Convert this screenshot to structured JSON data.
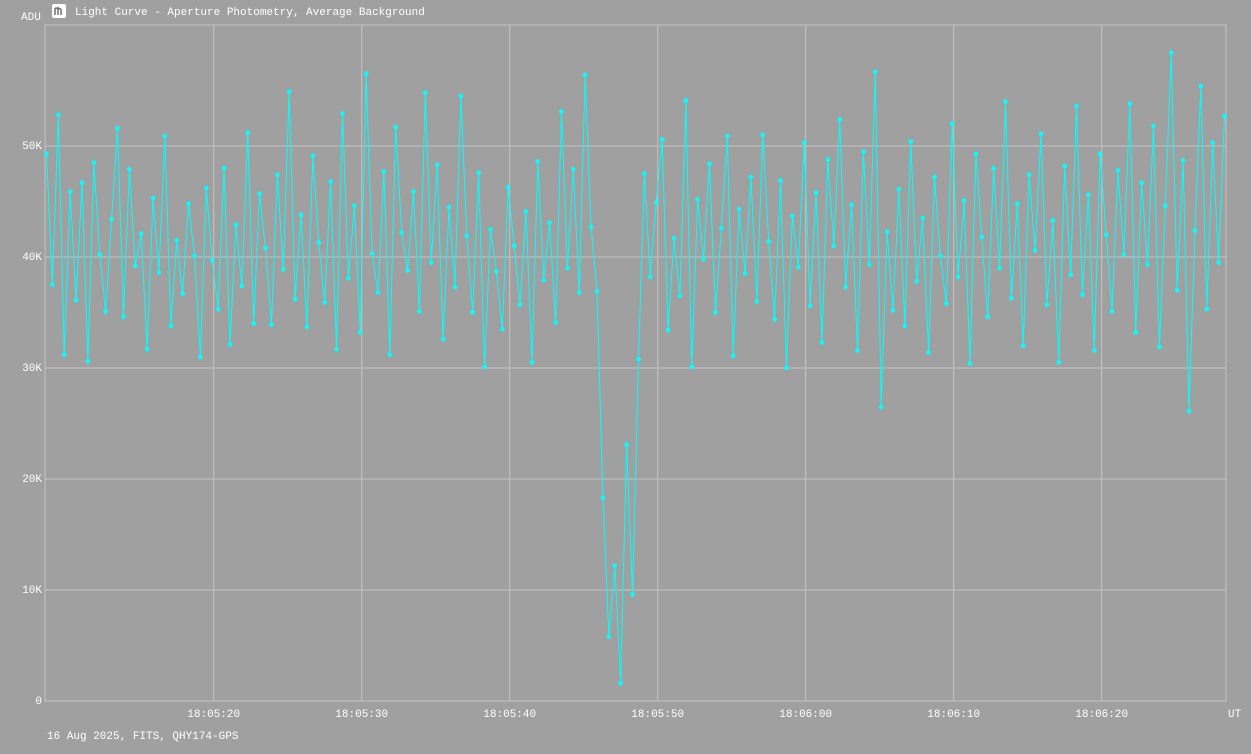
{
  "chart_data": {
    "type": "line",
    "title": "Light Curve - Aperture Photometry, Average Background",
    "footer": "16 Aug 2025, FITS, QHY174-GPS",
    "y_label": "ADU",
    "x_label": "UT",
    "color": "#00ffff",
    "grid": true,
    "xlim": [
      8.6,
      88.4
    ],
    "ylim": [
      0,
      60900
    ],
    "xticks": [
      {
        "value": 20,
        "label": "18:05:20"
      },
      {
        "value": 30,
        "label": "18:05:30"
      },
      {
        "value": 40,
        "label": "18:05:40"
      },
      {
        "value": 50,
        "label": "18:05:50"
      },
      {
        "value": 60,
        "label": "18:06:00"
      },
      {
        "value": 70,
        "label": "18:06:10"
      },
      {
        "value": 80,
        "label": "18:06:20"
      }
    ],
    "yticks": [
      0,
      {
        "value": 10000,
        "label": "10K"
      },
      {
        "value": 20000,
        "label": "20K"
      },
      {
        "value": 30000,
        "label": "30K"
      },
      {
        "value": 40000,
        "label": "40K"
      },
      {
        "value": 50000,
        "label": "50K"
      }
    ],
    "x": [
      8.7,
      9.1,
      9.5,
      9.9,
      10.3,
      10.7,
      11.1,
      11.5,
      11.9,
      12.3,
      12.7,
      13.1,
      13.5,
      13.9,
      14.3,
      14.7,
      15.1,
      15.5,
      15.9,
      16.3,
      16.7,
      17.1,
      17.5,
      17.9,
      18.3,
      18.7,
      19.1,
      19.5,
      19.9,
      20.3,
      20.7,
      21.1,
      21.5,
      21.9,
      22.3,
      22.7,
      23.1,
      23.5,
      23.9,
      24.3,
      24.7,
      25.1,
      25.5,
      25.9,
      26.3,
      26.7,
      27.1,
      27.5,
      27.9,
      28.3,
      28.7,
      29.1,
      29.5,
      29.9,
      30.3,
      30.7,
      31.1,
      31.5,
      31.9,
      32.3,
      32.7,
      33.1,
      33.5,
      33.9,
      34.3,
      34.7,
      35.1,
      35.5,
      35.9,
      36.3,
      36.7,
      37.1,
      37.5,
      37.9,
      38.3,
      38.7,
      39.1,
      39.5,
      39.9,
      40.3,
      40.7,
      41.1,
      41.5,
      41.9,
      42.3,
      42.7,
      43.1,
      43.5,
      43.9,
      44.3,
      44.7,
      45.1,
      45.5,
      45.9,
      46.3,
      46.7,
      47.1,
      47.5,
      47.9,
      48.3,
      48.7,
      49.1,
      49.5,
      49.9,
      50.3,
      50.7,
      51.1,
      51.5,
      51.9,
      52.3,
      52.7,
      53.1,
      53.5,
      53.9,
      54.3,
      54.7,
      55.1,
      55.5,
      55.9,
      56.3,
      56.7,
      57.1,
      57.5,
      57.9,
      58.3,
      58.7,
      59.1,
      59.5,
      59.9,
      60.3,
      60.7,
      61.1,
      61.5,
      61.9,
      62.3,
      62.7,
      63.1,
      63.5,
      63.9,
      64.3,
      64.7,
      65.1,
      65.5,
      65.9,
      66.3,
      66.7,
      67.1,
      67.5,
      67.9,
      68.3,
      68.7,
      69.1,
      69.5,
      69.9,
      70.3,
      70.7,
      71.1,
      71.5,
      71.9,
      72.3,
      72.7,
      73.1,
      73.5,
      73.9,
      74.3,
      74.7,
      75.1,
      75.5,
      75.9,
      76.3,
      76.7,
      77.1,
      77.5,
      77.9,
      78.3,
      78.7,
      79.1,
      79.5,
      79.9,
      80.3,
      80.7,
      81.1,
      81.5,
      81.9,
      82.3,
      82.7,
      83.1,
      83.5,
      83.9,
      84.3,
      84.7,
      85.1,
      85.5,
      85.9,
      86.3,
      86.7,
      87.1,
      87.5,
      87.9,
      88.3
    ],
    "values": [
      49300,
      37500,
      52800,
      31200,
      45900,
      36100,
      46700,
      30600,
      48500,
      40200,
      35100,
      43400,
      51600,
      34600,
      47900,
      39200,
      42100,
      31700,
      45300,
      38600,
      50900,
      33800,
      41500,
      36700,
      44800,
      40100,
      31000,
      46200,
      39700,
      35300,
      48000,
      32100,
      42900,
      37400,
      51200,
      34000,
      45700,
      40800,
      33900,
      47400,
      38900,
      54900,
      36200,
      43800,
      33700,
      49100,
      41300,
      35900,
      46800,
      31700,
      52900,
      38100,
      44600,
      33200,
      56500,
      40300,
      36800,
      47700,
      31200,
      51700,
      42200,
      38800,
      45900,
      35100,
      54800,
      39500,
      48300,
      32600,
      44500,
      37300,
      54500,
      41900,
      35000,
      47600,
      30100,
      42500,
      38700,
      33500,
      46300,
      41000,
      35700,
      44100,
      30500,
      48600,
      37900,
      43100,
      34100,
      53100,
      39000,
      47900,
      36800,
      56400,
      42700,
      36900,
      18300,
      5800,
      12200,
      1600,
      23100,
      9600,
      30800,
      47500,
      38200,
      44900,
      50600,
      33400,
      41700,
      36500,
      54100,
      30100,
      45200,
      39800,
      48400,
      35000,
      42600,
      50900,
      31100,
      44300,
      38500,
      47200,
      36000,
      51000,
      41400,
      34400,
      46900,
      30000,
      43700,
      39100,
      50300,
      35600,
      45800,
      32300,
      48800,
      41000,
      52400,
      37300,
      44700,
      31600,
      49500,
      39300,
      56700,
      26500,
      42300,
      35200,
      46100,
      33800,
      50400,
      37800,
      43500,
      31400,
      47200,
      40100,
      35800,
      52000,
      38200,
      45100,
      30400,
      49300,
      41800,
      34600,
      48000,
      39000,
      54000,
      36300,
      44800,
      32000,
      47400,
      40600,
      51100,
      35700,
      43300,
      30500,
      48200,
      38400,
      53600,
      36600,
      45600,
      31600,
      49300,
      42000,
      35100,
      47800,
      40200,
      53800,
      33200,
      46700,
      39300,
      51800,
      31900,
      44600,
      58400,
      37000,
      48700,
      26100,
      42400,
      55400,
      35300,
      50300,
      39500,
      52700
    ]
  }
}
